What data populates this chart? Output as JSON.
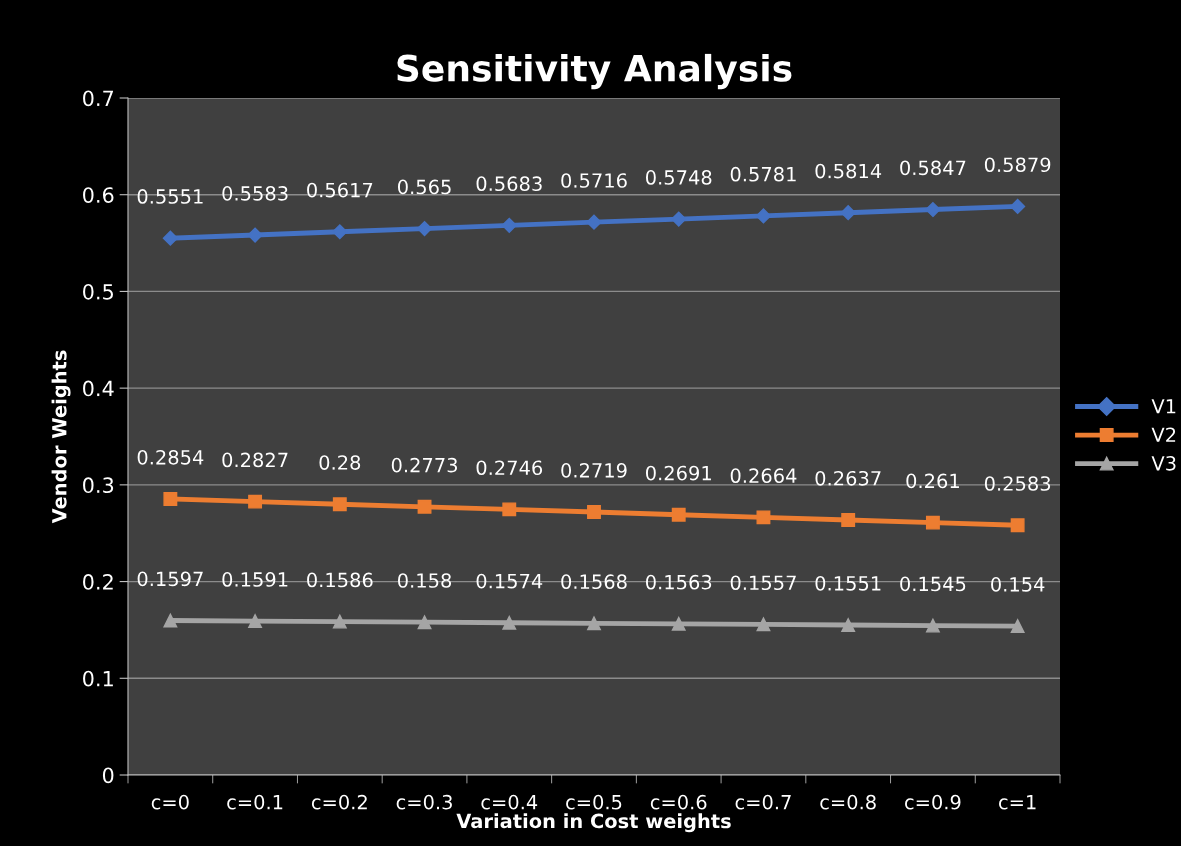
{
  "chart_data": {
    "type": "line",
    "title": "Sensitivity Analysis",
    "xlabel": "Variation in Cost weights",
    "ylabel": "Vendor Weights",
    "categories": [
      "c=0",
      "c=0.1",
      "c=0.2",
      "c=0.3",
      "c=0.4",
      "c=0.5",
      "c=0.6",
      "c=0.7",
      "c=0.8",
      "c=0.9",
      "c=1"
    ],
    "series": [
      {
        "name": "V1",
        "color": "#4472c4",
        "marker": "diamond",
        "values": [
          0.5551,
          0.5583,
          0.5617,
          0.565,
          0.5683,
          0.5716,
          0.5748,
          0.5781,
          0.5814,
          0.5847,
          0.5879
        ]
      },
      {
        "name": "V2",
        "color": "#ed7d31",
        "marker": "square",
        "values": [
          0.2854,
          0.2827,
          0.28,
          0.2773,
          0.2746,
          0.2719,
          0.2691,
          0.2664,
          0.2637,
          0.261,
          0.2583
        ]
      },
      {
        "name": "V3",
        "color": "#a5a5a5",
        "marker": "triangle",
        "values": [
          0.1597,
          0.1591,
          0.1586,
          0.158,
          0.1574,
          0.1568,
          0.1563,
          0.1557,
          0.1551,
          0.1545,
          0.154
        ]
      }
    ],
    "ylim": [
      0,
      0.7
    ],
    "yticks": [
      0,
      0.1,
      0.2,
      0.3,
      0.4,
      0.5,
      0.6,
      0.7
    ],
    "grid": "y",
    "legend": "right",
    "data_labels": true,
    "line_style": "solid"
  }
}
